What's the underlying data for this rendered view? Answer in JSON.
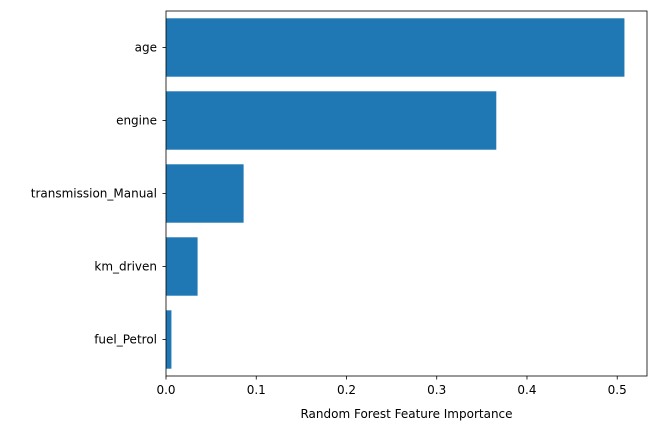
{
  "chart_data": {
    "type": "bar",
    "orientation": "horizontal",
    "categories": [
      "age",
      "engine",
      "transmission_Manual",
      "km_driven",
      "fuel_Petrol"
    ],
    "values": [
      0.508,
      0.366,
      0.086,
      0.035,
      0.006
    ],
    "title": "",
    "xlabel": "Random Forest Feature Importance",
    "ylabel": "",
    "xlim": [
      0,
      0.533
    ],
    "xticks": [
      0.0,
      0.1,
      0.2,
      0.3,
      0.4,
      0.5
    ],
    "xtick_labels": [
      "0.0",
      "0.1",
      "0.2",
      "0.3",
      "0.4",
      "0.5"
    ],
    "grid": false,
    "legend": "none",
    "bar_color": "#1f77b4"
  }
}
